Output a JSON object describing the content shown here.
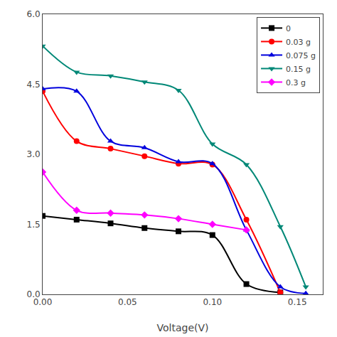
{
  "chart_data": {
    "type": "line",
    "xlabel": "Voltage(V)",
    "series": [
      {
        "name": "0",
        "color": "#000000",
        "marker": "square",
        "x": [
          0.0,
          0.02,
          0.04,
          0.06,
          0.08,
          0.1,
          0.12,
          0.14
        ],
        "values": [
          1.68,
          1.6,
          1.52,
          1.42,
          1.35,
          1.27,
          0.22,
          0.04
        ]
      },
      {
        "name": "0.03 g",
        "color": "#ff0000",
        "marker": "circle",
        "x": [
          0.0,
          0.02,
          0.04,
          0.06,
          0.08,
          0.1,
          0.12,
          0.14
        ],
        "values": [
          4.35,
          3.28,
          3.12,
          2.96,
          2.8,
          2.78,
          1.6,
          0.04
        ]
      },
      {
        "name": "0.075 g",
        "color": "#0000dd",
        "marker": "triangle-up",
        "x": [
          0.0,
          0.02,
          0.04,
          0.06,
          0.08,
          0.1,
          0.12,
          0.14,
          0.155
        ],
        "values": [
          4.4,
          4.35,
          3.28,
          3.14,
          2.84,
          2.8,
          1.38,
          0.16,
          0.02
        ]
      },
      {
        "name": "0.15 g",
        "color": "#008877",
        "marker": "triangle-down",
        "x": [
          0.0,
          0.02,
          0.04,
          0.06,
          0.08,
          0.1,
          0.12,
          0.14,
          0.155
        ],
        "values": [
          5.32,
          4.76,
          4.68,
          4.55,
          4.37,
          3.22,
          2.78,
          1.45,
          0.16
        ]
      },
      {
        "name": "0.3 g",
        "color": "#ff00ff",
        "marker": "diamond",
        "x": [
          0.0,
          0.02,
          0.04,
          0.06,
          0.08,
          0.1,
          0.12
        ],
        "values": [
          2.62,
          1.8,
          1.74,
          1.7,
          1.62,
          1.5,
          1.38
        ]
      }
    ],
    "xlim": [
      0.0,
      0.165
    ],
    "ylim": [
      0.0,
      6.0
    ],
    "xticks": [
      {
        "value": 0.0,
        "label": "0.00"
      },
      {
        "value": 0.05,
        "label": "0.05"
      },
      {
        "value": 0.1,
        "label": "0.10"
      },
      {
        "value": 0.15,
        "label": "0.15"
      }
    ],
    "yticks": [
      {
        "value": 0.0,
        "label": "0.0"
      },
      1.5,
      {
        "value": 3.0,
        "label": "3.0"
      },
      4.5,
      {
        "value": 6.0,
        "label": "6.0"
      }
    ],
    "grid": false,
    "legend": "upper right"
  }
}
